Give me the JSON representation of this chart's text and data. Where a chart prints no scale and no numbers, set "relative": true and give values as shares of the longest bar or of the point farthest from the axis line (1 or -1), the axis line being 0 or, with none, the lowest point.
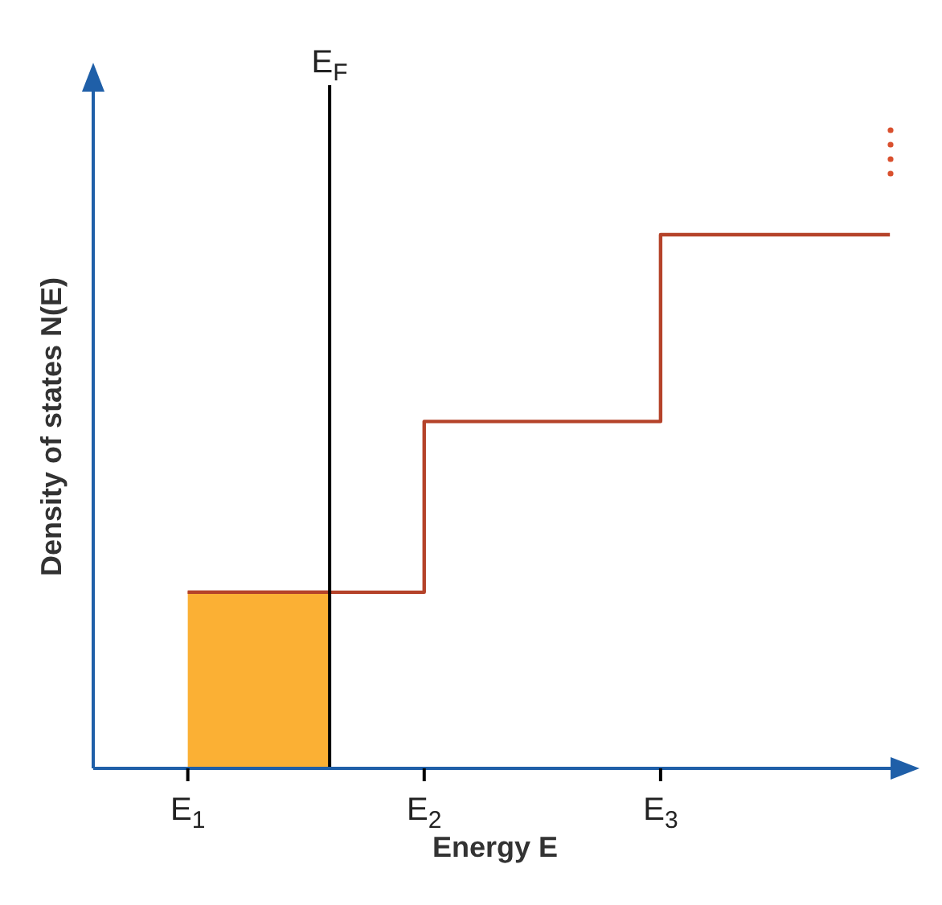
{
  "chart_data": {
    "type": "step",
    "relative": true,
    "xlabel": "Energy E",
    "ylabel": "Density of states N(E)",
    "xlim": [
      0.6,
      4.0
    ],
    "xticks": [
      {
        "value": 1,
        "label": "E$_{1}$"
      },
      {
        "value": 2,
        "label": "E$_{2}$"
      },
      {
        "value": 3,
        "label": "E$_{3}$"
      }
    ],
    "series": [
      {
        "type": "area",
        "color": "#fbb034",
        "x": [
          1,
          1.6
        ],
        "values": [
          0.33,
          0.33
        ]
      },
      {
        "color": "#b5432a",
        "x": [
          1,
          2,
          3,
          3.97
        ],
        "values": [
          0.33,
          0.65,
          1,
          1
        ]
      }
    ],
    "ref_lines": [
      {
        "axis": "x",
        "value": 1.6,
        "label": "E$_{F}$",
        "color": "#000000"
      }
    ],
    "grid": false,
    "marker": "none"
  }
}
